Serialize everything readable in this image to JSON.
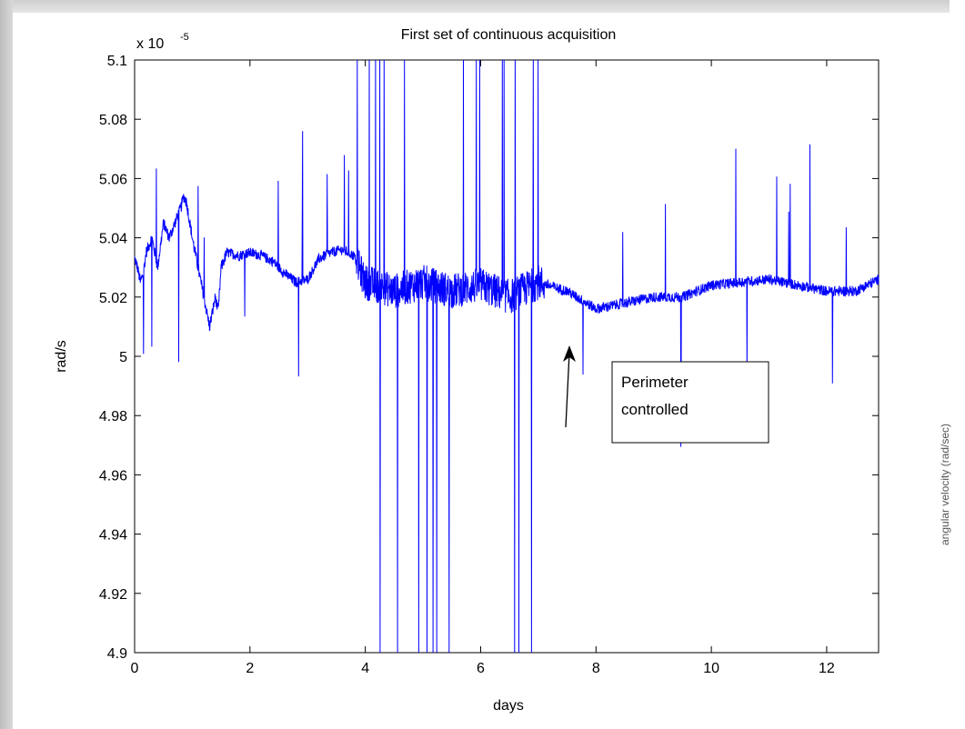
{
  "chart_data": {
    "type": "line",
    "title": "First set of continuous acquisition",
    "xlabel": "days",
    "ylabel": "rad/s",
    "y_exponent_label": "x 10",
    "y_exponent_power": "-5",
    "xlim": [
      0,
      12.9
    ],
    "ylim": [
      4.9,
      5.1
    ],
    "xticks": [
      "0",
      "2",
      "4",
      "6",
      "8",
      "10",
      "12"
    ],
    "yticks": [
      "4.9",
      "4.92",
      "4.94",
      "4.96",
      "4.98",
      "5",
      "5.02",
      "5.04",
      "5.06",
      "5.08",
      "5.1"
    ],
    "grid": false,
    "line_color": "#0000ff",
    "series": [
      {
        "x": [
          0,
          0.05,
          0.1,
          0.15,
          0.2,
          0.3,
          0.4,
          0.5,
          0.6,
          0.7,
          0.8,
          0.85,
          0.9,
          1.0,
          1.1,
          1.2,
          1.3,
          1.4,
          1.45,
          1.5,
          1.6,
          1.8,
          2.0,
          2.2,
          2.4,
          2.6,
          2.8,
          3.0,
          3.2,
          3.4,
          3.6,
          3.8,
          4.0,
          4.5,
          5.0,
          5.5,
          6.0,
          6.5,
          7.0,
          7.5,
          8.0,
          8.5,
          9.0,
          9.5,
          10.0,
          10.5,
          11.0,
          11.5,
          12.0,
          12.5,
          12.9
        ],
        "y": [
          5.033,
          5.03,
          5.025,
          5.028,
          5.035,
          5.04,
          5.03,
          5.045,
          5.04,
          5.045,
          5.05,
          5.054,
          5.052,
          5.04,
          5.03,
          5.02,
          5.01,
          5.02,
          5.015,
          5.03,
          5.035,
          5.034,
          5.035,
          5.034,
          5.032,
          5.028,
          5.025,
          5.026,
          5.033,
          5.035,
          5.036,
          5.034,
          5.025,
          5.022,
          5.025,
          5.022,
          5.024,
          5.02,
          5.025,
          5.022,
          5.016,
          5.018,
          5.02,
          5.02,
          5.024,
          5.025,
          5.026,
          5.024,
          5.022,
          5.022,
          5.026
        ]
      }
    ],
    "annotation": {
      "text_line1": "Perimeter",
      "text_line2": "controlled",
      "arrow_x": 7.5,
      "arrow_y": 5.004
    }
  },
  "side_label": "angular velocity (rad/sec)"
}
